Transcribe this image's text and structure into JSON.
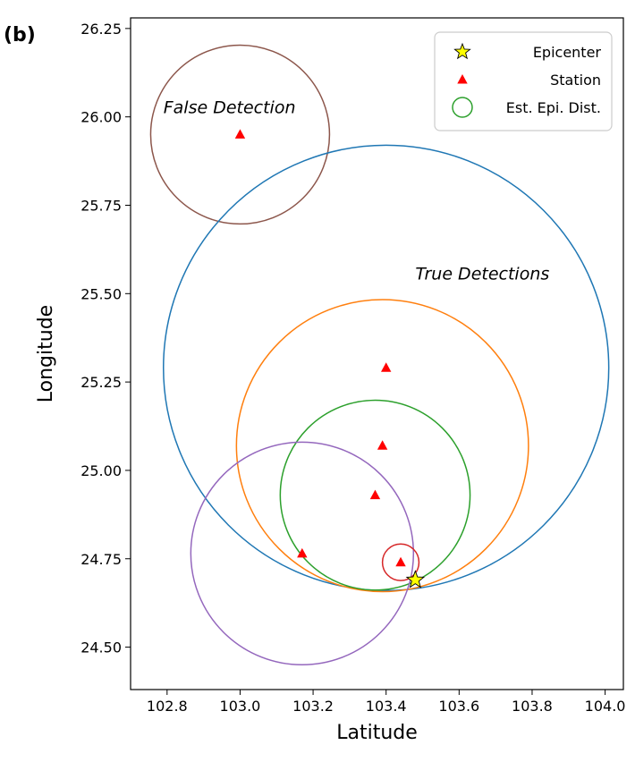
{
  "panel_label": "(b)",
  "chart_data": {
    "type": "scatter",
    "xlabel": "Latitude",
    "ylabel": "Longitude",
    "xlim": [
      102.7,
      104.05
    ],
    "ylim": [
      24.38,
      26.28
    ],
    "x_ticks": [
      102.8,
      103.0,
      103.2,
      103.4,
      103.6,
      103.8,
      104.0
    ],
    "x_tick_labels": [
      "102.8",
      "103.0",
      "103.2",
      "103.4",
      "103.6",
      "103.8",
      "104.0"
    ],
    "y_ticks": [
      24.5,
      24.75,
      25.0,
      25.25,
      25.5,
      25.75,
      26.0,
      26.25
    ],
    "y_tick_labels": [
      "24.50",
      "24.75",
      "25.00",
      "25.25",
      "25.50",
      "25.75",
      "26.00",
      "26.25"
    ],
    "grid": false,
    "legend_position": "top-right",
    "legend": [
      {
        "label": "Epicenter",
        "marker": "star",
        "color": "#ffff00"
      },
      {
        "label": "Station",
        "marker": "triangle",
        "color": "#ff0000"
      },
      {
        "label": "Est. Epi. Dist.",
        "marker": "circle",
        "color": "#2ca02c"
      }
    ],
    "epicenter": {
      "x": 103.48,
      "y": 24.69
    },
    "stations": [
      {
        "x": 103.0,
        "y": 25.95
      },
      {
        "x": 103.4,
        "y": 25.29
      },
      {
        "x": 103.39,
        "y": 25.07
      },
      {
        "x": 103.37,
        "y": 24.93
      },
      {
        "x": 103.17,
        "y": 24.765
      },
      {
        "x": 103.44,
        "y": 24.74
      }
    ],
    "circles": [
      {
        "cx": 103.0,
        "cy": 25.95,
        "r": 0.245,
        "color": "#8c564b"
      },
      {
        "cx": 103.4,
        "cy": 25.29,
        "r": 0.61,
        "color": "#1f77b4"
      },
      {
        "cx": 103.39,
        "cy": 25.07,
        "r": 0.4,
        "color": "#ff7f0e"
      },
      {
        "cx": 103.37,
        "cy": 24.93,
        "r": 0.26,
        "color": "#2ca02c"
      },
      {
        "cx": 103.17,
        "cy": 24.765,
        "r": 0.305,
        "color": "#9467bd"
      },
      {
        "cx": 103.44,
        "cy": 24.74,
        "r": 0.05,
        "color": "#d62728"
      }
    ],
    "annotations": [
      {
        "text": "False Detection",
        "x": 102.79,
        "y": 26.01
      },
      {
        "text": "True Detections",
        "x": 103.48,
        "y": 25.54
      }
    ]
  }
}
